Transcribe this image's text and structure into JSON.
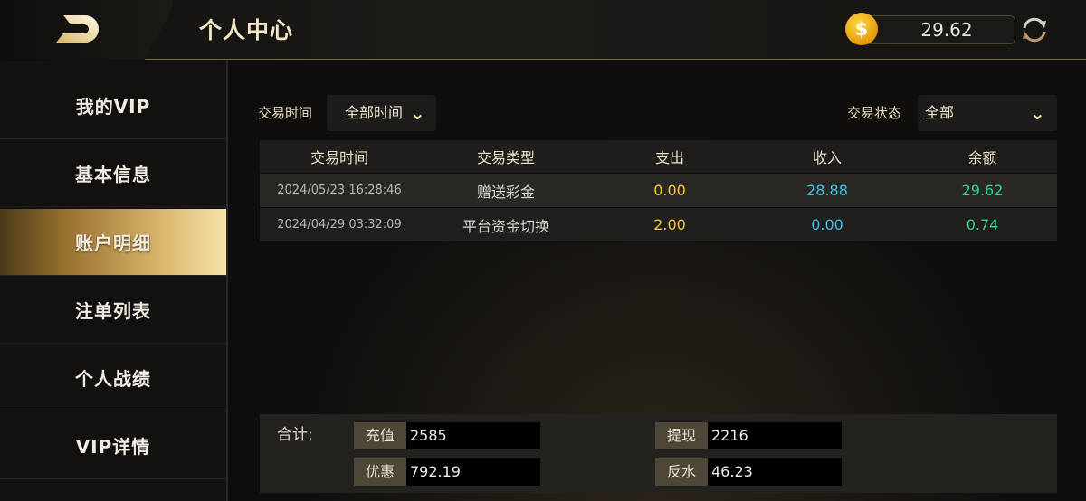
{
  "header": {
    "title": "个人中心",
    "balance": "29.62",
    "coin_icon": "dollar-coin-icon",
    "refresh_icon": "refresh-icon",
    "back_icon": "back-icon"
  },
  "sidebar": {
    "items": [
      {
        "label": "我的VIP"
      },
      {
        "label": "基本信息"
      },
      {
        "label": "账户明细",
        "active": true
      },
      {
        "label": "注单列表"
      },
      {
        "label": "个人战绩"
      },
      {
        "label": "VIP详情"
      }
    ]
  },
  "filters": {
    "time_label": "交易时间",
    "time_value": "全部时间",
    "status_label": "交易状态",
    "status_value": "全部"
  },
  "table": {
    "headers": [
      "交易时间",
      "交易类型",
      "支出",
      "收入",
      "余额"
    ],
    "rows": [
      {
        "time": "2024/05/23 16:28:46",
        "type": "赠送彩金",
        "out": "0.00",
        "in": "28.88",
        "balance": "29.62"
      },
      {
        "time": "2024/04/29 03:32:09",
        "type": "平台资金切换",
        "out": "2.00",
        "in": "0.00",
        "balance": "0.74"
      }
    ]
  },
  "summary": {
    "label": "合计:",
    "fields": [
      {
        "label": "充值",
        "value": "2585"
      },
      {
        "label": "提现",
        "value": "2216"
      },
      {
        "label": "优惠",
        "value": "792.19"
      },
      {
        "label": "反水",
        "value": "46.23"
      }
    ]
  },
  "colors": {
    "accent_gold": "#d7b46a",
    "expense": "#f3c928",
    "income": "#30c6e6",
    "balance": "#2fd48a"
  }
}
